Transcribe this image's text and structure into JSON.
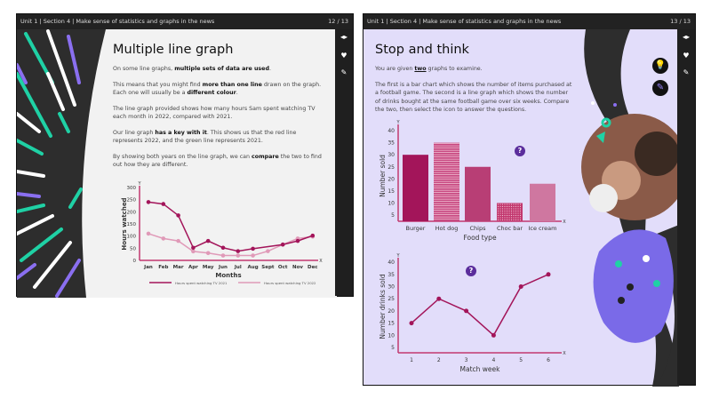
{
  "left": {
    "breadcrumb": "Unit 1  |  Section 4  |  Make sense of statistics and graphs in the news",
    "page": "12 / 13",
    "title": "Multiple line graph",
    "p1a": "On some line graphs, ",
    "p1b": "multiple sets of data are used",
    "p2a": "This means that you might find ",
    "p2b": "more than one line",
    "p2c": " drawn on the graph. Each one will usually be a ",
    "p2d": "different colour",
    "p3": "The line graph provided shows how many hours Sam spent watching TV each month in 2022, compared with 2021.",
    "p4a": "Our line graph ",
    "p4b": "has a key with it",
    "p4c": ". This shows us that the red line represents 2022, and the green line represents 2021.",
    "p5a": "By showing both years on the line graph, we can ",
    "p5b": "compare",
    "p5c": " the two to find out how they are different."
  },
  "right": {
    "breadcrumb": "Unit 1  |  Section 4  |  Make sense of statistics and graphs in the news",
    "page": "13 / 13",
    "title": "Stop and think",
    "p1a": "You are given ",
    "p1b": "two",
    "p1c": " graphs to examine.",
    "p2": "The first is a bar chart which shows the number of items purchased at a football game. The second is a line graph which shows the number of drinks bought at the same football game over six weeks. Compare the two, then select the icon to answer the questions.",
    "question_mark": "?"
  },
  "sidebar_icons": [
    "prev-next-arrows",
    "heart-icon",
    "pencil-icon"
  ],
  "chart_data": [
    {
      "type": "line",
      "xlabel": "Months",
      "ylabel": "Hours watched",
      "ylim": [
        0,
        300
      ],
      "yticks": [
        0,
        50,
        100,
        150,
        200,
        250,
        300
      ],
      "categories": [
        "Jan",
        "Feb",
        "Mar",
        "Apr",
        "May",
        "Jun",
        "Jul",
        "Aug",
        "Sept",
        "Oct",
        "Nov",
        "Dec"
      ],
      "axis_x": "X",
      "axis_y": "Y",
      "series": [
        {
          "name": "Hours spent watching TV 2021",
          "color": "#a3155a",
          "values": [
            240,
            232,
            185,
            52,
            80,
            52,
            38,
            48,
            null,
            65,
            80,
            102
          ]
        },
        {
          "name": "Hours spent watching TV 2022",
          "color": "#e09ab8",
          "values": [
            110,
            90,
            80,
            37,
            30,
            20,
            20,
            20,
            38,
            65,
            90,
            98
          ]
        }
      ]
    },
    {
      "type": "bar",
      "xlabel": "Food type",
      "ylabel": "Number sold",
      "ylim": [
        0,
        40
      ],
      "yticks": [
        5,
        10,
        15,
        20,
        25,
        30,
        35,
        40
      ],
      "axis_x": "X",
      "axis_y": "Y",
      "categories": [
        "Burger",
        "Hot dog",
        "Chips",
        "Choc bar",
        "Ice cream"
      ],
      "values": [
        30,
        35,
        25,
        10,
        18
      ],
      "colors": [
        "#a3155a",
        "#c84a82",
        "#b83e75",
        "#c2386f",
        "#cf77a0"
      ]
    },
    {
      "type": "line",
      "xlabel": "Match week",
      "ylabel": "Number drinks sold",
      "ylim": [
        0,
        40
      ],
      "yticks": [
        5,
        10,
        15,
        20,
        25,
        30,
        35,
        40
      ],
      "axis_x": "X",
      "axis_y": "Y",
      "categories": [
        "1",
        "2",
        "3",
        "4",
        "5",
        "6"
      ],
      "values": [
        15,
        25,
        20,
        10,
        30,
        35
      ],
      "color": "#a3155a"
    }
  ]
}
